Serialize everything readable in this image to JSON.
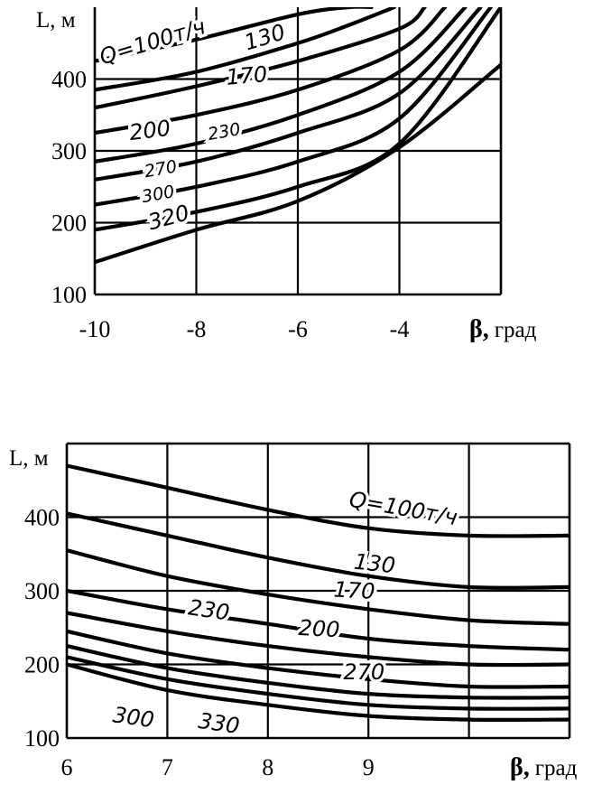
{
  "chart_data": [
    {
      "type": "line",
      "ylabel": "L, м",
      "xlabel_symbol": "β,",
      "xlabel_unit": "град",
      "xlim": [
        -10,
        -2
      ],
      "ylim": [
        100,
        500
      ],
      "xticks": [
        "-10",
        "-8",
        "-6",
        "-4"
      ],
      "yticks": [
        "100",
        "200",
        "300",
        "400"
      ],
      "grid": true,
      "series": [
        {
          "name": "Q=100т/ч",
          "x": [
            -10,
            -8,
            -6,
            -5,
            -4.55
          ],
          "y": [
            425,
            455,
            490,
            500,
            500
          ]
        },
        {
          "name": "130",
          "x": [
            -10,
            -8,
            -6,
            -5,
            -4.1
          ],
          "y": [
            385,
            410,
            450,
            475,
            500
          ]
        },
        {
          "name": "170",
          "x": [
            -10,
            -8,
            -6,
            -4,
            -3.5
          ],
          "y": [
            360,
            390,
            425,
            470,
            500
          ]
        },
        {
          "name": "200",
          "x": [
            -10,
            -8,
            -6,
            -4,
            -3.1
          ],
          "y": [
            325,
            350,
            385,
            440,
            500
          ]
        },
        {
          "name": "230",
          "x": [
            -10,
            -8,
            -6,
            -4,
            -2.7
          ],
          "y": [
            285,
            310,
            350,
            410,
            500
          ]
        },
        {
          "name": "270",
          "x": [
            -10,
            -8,
            -6,
            -4,
            -2.4
          ],
          "y": [
            260,
            285,
            325,
            380,
            500
          ]
        },
        {
          "name": "300",
          "x": [
            -10,
            -8,
            -6,
            -4,
            -2.2
          ],
          "y": [
            225,
            250,
            285,
            345,
            500
          ]
        },
        {
          "name": "320",
          "x": [
            -10,
            -8,
            -6,
            -4,
            -2.0
          ],
          "y": [
            190,
            215,
            250,
            310,
            500
          ]
        },
        {
          "name": "",
          "x": [
            -10,
            -8,
            -6,
            -4,
            -2.0
          ],
          "y": [
            145,
            190,
            230,
            305,
            420
          ]
        }
      ],
      "labels": [
        {
          "text": "Q=100т/ч",
          "x": -9.85,
          "y": 420,
          "rotate": -17,
          "size": "normal"
        },
        {
          "text": "130",
          "x": -7.0,
          "y": 440,
          "rotate": -17,
          "size": "normal"
        },
        {
          "text": "170",
          "x": -7.4,
          "y": 392,
          "rotate": -5,
          "size": "normal"
        },
        {
          "text": "200",
          "x": -9.3,
          "y": 315,
          "rotate": -7,
          "size": "normal"
        },
        {
          "text": "230",
          "x": -7.75,
          "y": 315,
          "rotate": -10,
          "size": "small"
        },
        {
          "text": "270",
          "x": -9.0,
          "y": 263,
          "rotate": -10,
          "size": "small"
        },
        {
          "text": "300",
          "x": -9.05,
          "y": 228,
          "rotate": -10,
          "size": "small"
        },
        {
          "text": "320",
          "x": -8.9,
          "y": 190,
          "rotate": -15,
          "size": "normal"
        }
      ]
    },
    {
      "type": "line",
      "ylabel": "L, м",
      "xlabel_symbol": "β,",
      "xlabel_unit": "град",
      "xlim": [
        6,
        11
      ],
      "ylim": [
        100,
        500
      ],
      "xticks": [
        "6",
        "7",
        "8",
        "9"
      ],
      "yticks": [
        "100",
        "200",
        "300",
        "400"
      ],
      "grid": true,
      "series": [
        {
          "name": "Q=100т/ч",
          "x": [
            6,
            7,
            8,
            9,
            10,
            11
          ],
          "y": [
            470,
            440,
            410,
            385,
            375,
            375
          ]
        },
        {
          "name": "130",
          "x": [
            6,
            7,
            8,
            9,
            10,
            11
          ],
          "y": [
            405,
            375,
            345,
            320,
            305,
            305
          ]
        },
        {
          "name": "170",
          "x": [
            6,
            7,
            8,
            9,
            10,
            11
          ],
          "y": [
            355,
            320,
            295,
            275,
            260,
            255
          ]
        },
        {
          "name": "200",
          "x": [
            6,
            7,
            8,
            9,
            10,
            11
          ],
          "y": [
            300,
            275,
            255,
            235,
            225,
            220
          ]
        },
        {
          "name": "230",
          "x": [
            6,
            7,
            8,
            9,
            10,
            11
          ],
          "y": [
            270,
            245,
            225,
            210,
            200,
            200
          ]
        },
        {
          "name": "270",
          "x": [
            6,
            7,
            8,
            9,
            10,
            11
          ],
          "y": [
            245,
            215,
            195,
            180,
            170,
            170
          ]
        },
        {
          "name": "",
          "x": [
            6,
            7,
            8,
            9,
            10,
            11
          ],
          "y": [
            225,
            195,
            175,
            160,
            155,
            155
          ]
        },
        {
          "name": "300",
          "x": [
            6,
            7,
            8,
            9,
            10,
            11
          ],
          "y": [
            210,
            180,
            160,
            145,
            140,
            140
          ]
        },
        {
          "name": "330",
          "x": [
            6,
            7,
            8,
            9,
            10,
            11
          ],
          "y": [
            200,
            165,
            145,
            130,
            125,
            125
          ]
        }
      ],
      "labels": [
        {
          "text": "Q=100т/ч",
          "x": 8.8,
          "y": 415,
          "rotate": 10,
          "size": "normal"
        },
        {
          "text": "130",
          "x": 8.85,
          "y": 330,
          "rotate": 6,
          "size": "normal"
        },
        {
          "text": "170",
          "x": 8.65,
          "y": 292,
          "rotate": 3,
          "size": "normal"
        },
        {
          "text": "230",
          "x": 7.2,
          "y": 268,
          "rotate": 8,
          "size": "normal"
        },
        {
          "text": "200",
          "x": 8.3,
          "y": 240,
          "rotate": 3,
          "size": "normal"
        },
        {
          "text": "270",
          "x": 8.75,
          "y": 180,
          "rotate": 0,
          "size": "normal"
        },
        {
          "text": "300",
          "x": 6.45,
          "y": 122,
          "rotate": 8,
          "size": "normal"
        },
        {
          "text": "330",
          "x": 7.3,
          "y": 114,
          "rotate": 8,
          "size": "normal"
        }
      ]
    }
  ]
}
